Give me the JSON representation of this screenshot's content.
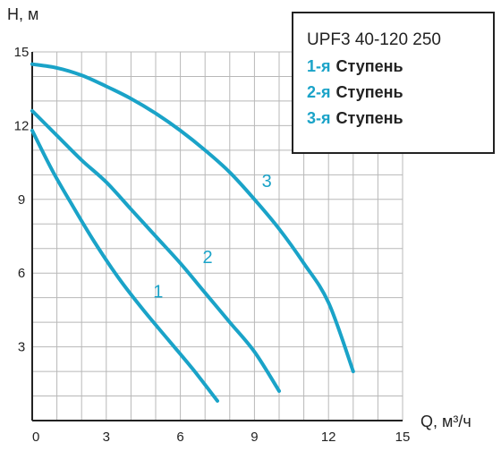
{
  "chart_data": {
    "type": "line",
    "xlabel": "Q, м³/ч",
    "ylabel": "H, м",
    "xlim": [
      0,
      15
    ],
    "ylim": [
      0,
      15
    ],
    "x_ticks": [
      "0",
      "3",
      "6",
      "9",
      "12",
      "15"
    ],
    "y_ticks": [
      "3",
      "6",
      "9",
      "12",
      "15"
    ],
    "grid": true,
    "legend_position": "top-right",
    "line_color": "#1aa3c8",
    "legend": {
      "title": "UPF3 40-120 250",
      "entries": [
        {
          "prefix": "1-я",
          "text": "Ступень"
        },
        {
          "prefix": "2-я",
          "text": "Ступень"
        },
        {
          "prefix": "3-я",
          "text": "Ступень"
        }
      ]
    },
    "series": [
      {
        "label": "1",
        "label_at": [
          4.9,
          5.0
        ],
        "points": [
          [
            0,
            11.8
          ],
          [
            0.8,
            10.2
          ],
          [
            1.6,
            8.8
          ],
          [
            2.5,
            7.3
          ],
          [
            3.5,
            5.8
          ],
          [
            4.5,
            4.5
          ],
          [
            5.5,
            3.3
          ],
          [
            6.5,
            2.1
          ],
          [
            7.5,
            0.8
          ]
        ]
      },
      {
        "label": "2",
        "label_at": [
          6.9,
          6.4
        ],
        "points": [
          [
            0,
            12.6
          ],
          [
            1,
            11.6
          ],
          [
            2,
            10.6
          ],
          [
            3,
            9.7
          ],
          [
            4,
            8.6
          ],
          [
            5,
            7.5
          ],
          [
            6,
            6.4
          ],
          [
            7,
            5.2
          ],
          [
            8,
            4.0
          ],
          [
            9,
            2.8
          ],
          [
            10,
            1.2
          ]
        ]
      },
      {
        "label": "3",
        "label_at": [
          9.3,
          9.5
        ],
        "points": [
          [
            0,
            14.5
          ],
          [
            1,
            14.35
          ],
          [
            2,
            14.05
          ],
          [
            3,
            13.6
          ],
          [
            4,
            13.1
          ],
          [
            5,
            12.5
          ],
          [
            6,
            11.8
          ],
          [
            7,
            11.0
          ],
          [
            8,
            10.1
          ],
          [
            9,
            9.0
          ],
          [
            10,
            7.8
          ],
          [
            11,
            6.4
          ],
          [
            12,
            4.8
          ],
          [
            13,
            2.0
          ]
        ]
      }
    ]
  }
}
